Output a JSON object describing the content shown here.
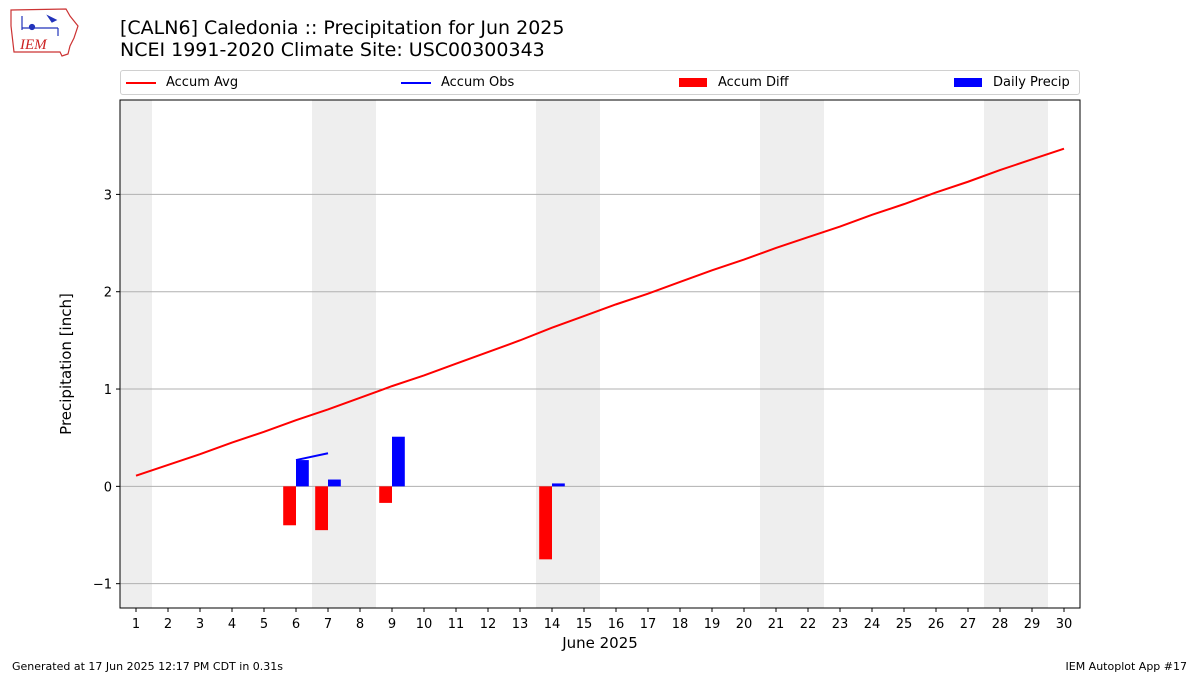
{
  "title_line1": "[CALN6] Caledonia :: Precipitation for Jun 2025",
  "title_line2": "NCEI 1991-2020 Climate Site: USC00300343",
  "logo_text": "IEM",
  "footer_left": "Generated at 17 Jun 2025 12:17 PM CDT in 0.31s",
  "footer_right": "IEM Autoplot App #17",
  "colors": {
    "avg": "#ff0000",
    "obs": "#0000ff",
    "diff": "#ff0000",
    "daily": "#0000ff",
    "weekend": "#eeeeee",
    "grid": "#b0b0b0"
  },
  "chart_data": {
    "type": "bar",
    "xlabel": "June 2025",
    "ylabel": "Precipitation [inch]",
    "xlim": [
      0.5,
      30.5
    ],
    "ylim": [
      -1.25,
      3.97
    ],
    "yticks": [
      -1,
      0,
      1,
      2,
      3
    ],
    "ytick_labels": [
      "−1",
      "0",
      "1",
      "2",
      "3"
    ],
    "grid": "horizontal",
    "legend": {
      "placement": "top",
      "entries": [
        "Accum Avg",
        "Accum Obs",
        "Accum Diff",
        "Daily Precip"
      ]
    },
    "days": [
      1,
      2,
      3,
      4,
      5,
      6,
      7,
      8,
      9,
      10,
      11,
      12,
      13,
      14,
      15,
      16,
      17,
      18,
      19,
      20,
      21,
      22,
      23,
      24,
      25,
      26,
      27,
      28,
      29,
      30
    ],
    "weekend_days": [
      1,
      7,
      8,
      14,
      15,
      21,
      22,
      28,
      29
    ],
    "series": [
      {
        "name": "Accum Avg",
        "type": "line",
        "x": [
          1,
          2,
          3,
          4,
          5,
          6,
          7,
          8,
          9,
          10,
          11,
          12,
          13,
          14,
          15,
          16,
          17,
          18,
          19,
          20,
          21,
          22,
          23,
          24,
          25,
          26,
          27,
          28,
          29,
          30
        ],
        "values": [
          0.11,
          0.22,
          0.33,
          0.45,
          0.56,
          0.68,
          0.79,
          0.91,
          1.03,
          1.14,
          1.26,
          1.38,
          1.5,
          1.63,
          1.75,
          1.87,
          1.98,
          2.1,
          2.22,
          2.33,
          2.45,
          2.56,
          2.67,
          2.79,
          2.9,
          3.02,
          3.13,
          3.25,
          3.36,
          3.47
        ]
      },
      {
        "name": "Accum Obs",
        "type": "line",
        "x": [
          6,
          7
        ],
        "values": [
          0.27,
          0.34
        ]
      },
      {
        "name": "Accum Diff",
        "type": "bar",
        "x": [
          6,
          7,
          9,
          14
        ],
        "values": [
          -0.4,
          -0.45,
          -0.17,
          -0.75
        ]
      },
      {
        "name": "Daily Precip",
        "type": "bar",
        "x": [
          6,
          7,
          9,
          14
        ],
        "values": [
          0.27,
          0.07,
          0.51,
          0.03
        ]
      }
    ]
  }
}
